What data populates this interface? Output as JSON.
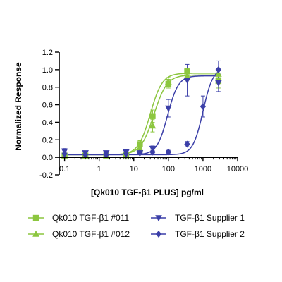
{
  "chart_data": {
    "type": "scatter",
    "title": "",
    "xlabel": "[Qk010 TGF-β1 PLUS] pg/ml",
    "ylabel": "Normalized Response",
    "x_scale": "log",
    "xlim": [
      0.07,
      10000
    ],
    "ylim": [
      -0.2,
      1.2
    ],
    "x_ticks": [
      {
        "value": 0.1,
        "label": "0.1"
      },
      {
        "value": 1,
        "label": "1"
      },
      {
        "value": 10,
        "label": "10"
      },
      {
        "value": 100,
        "label": "100"
      },
      {
        "value": 1000,
        "label": "1000"
      },
      {
        "value": 10000,
        "label": "10000"
      }
    ],
    "y_ticks": [
      {
        "value": -0.2,
        "label": "-0.2"
      },
      {
        "value": 0.0,
        "label": "0.0"
      },
      {
        "value": 0.2,
        "label": "0.2"
      },
      {
        "value": 0.4,
        "label": "0.4"
      },
      {
        "value": 0.6,
        "label": "0.6"
      },
      {
        "value": 0.8,
        "label": "0.8"
      },
      {
        "value": 1.0,
        "label": "1.0"
      },
      {
        "value": 1.2,
        "label": "1.2"
      }
    ],
    "grid": false,
    "legend_position": "bottom",
    "series": [
      {
        "name": "Qk010 TGF-β1 #011",
        "color": "#8cc63f",
        "marker": "square",
        "fit": {
          "bottom": 0.03,
          "top": 0.96,
          "ec50": 30,
          "hill": 2.5
        },
        "points": [
          {
            "x": 0.1,
            "y": 0.02,
            "err": 0.02
          },
          {
            "x": 0.4,
            "y": 0.02,
            "err": 0.02
          },
          {
            "x": 1.6,
            "y": 0.02,
            "err": 0.02
          },
          {
            "x": 6,
            "y": 0.03,
            "err": 0.02
          },
          {
            "x": 15,
            "y": 0.15,
            "err": 0.04
          },
          {
            "x": 35,
            "y": 0.47,
            "err": 0.07
          },
          {
            "x": 100,
            "y": 0.84,
            "err": 0.05
          },
          {
            "x": 350,
            "y": 0.98,
            "err": 0.03
          },
          {
            "x": 2800,
            "y": 0.87,
            "err": 0.08
          }
        ]
      },
      {
        "name": "Qk010 TGF-β1 #012",
        "color": "#8cc63f",
        "marker": "triangle-up",
        "fit": {
          "bottom": 0.03,
          "top": 0.94,
          "ec50": 38,
          "hill": 2.3
        },
        "points": [
          {
            "x": 0.1,
            "y": 0.02,
            "err": 0.02
          },
          {
            "x": 0.4,
            "y": 0.02,
            "err": 0.02
          },
          {
            "x": 1.6,
            "y": 0.02,
            "err": 0.02
          },
          {
            "x": 6,
            "y": 0.02,
            "err": 0.02
          },
          {
            "x": 15,
            "y": 0.1,
            "err": 0.04
          },
          {
            "x": 35,
            "y": 0.36,
            "err": 0.07
          },
          {
            "x": 100,
            "y": 0.86,
            "err": 0.05
          },
          {
            "x": 350,
            "y": 0.93,
            "err": 0.05
          },
          {
            "x": 2800,
            "y": 0.95,
            "err": 0.04
          }
        ]
      },
      {
        "name": "TGF-β1 Supplier 1",
        "color": "#3b3fa8",
        "marker": "triangle-down",
        "fit": {
          "bottom": 0.03,
          "top": 0.93,
          "ec50": 95,
          "hill": 2.8
        },
        "points": [
          {
            "x": 0.1,
            "y": 0.07,
            "err": 0.03
          },
          {
            "x": 0.4,
            "y": 0.05,
            "err": 0.02
          },
          {
            "x": 1.6,
            "y": 0.05,
            "err": 0.02
          },
          {
            "x": 6,
            "y": 0.06,
            "err": 0.02
          },
          {
            "x": 15,
            "y": 0.05,
            "err": 0.02
          },
          {
            "x": 35,
            "y": 0.1,
            "err": 0.03
          },
          {
            "x": 100,
            "y": 0.56,
            "err": 0.1
          },
          {
            "x": 350,
            "y": 0.88,
            "err": 0.18
          },
          {
            "x": 2800,
            "y": 0.85,
            "err": 0.1
          }
        ]
      },
      {
        "name": "TGF-β1 Supplier 2",
        "color": "#3b3fa8",
        "marker": "diamond",
        "fit": {
          "bottom": 0.03,
          "top": 1.02,
          "ec50": 1000,
          "hill": 3.0
        },
        "points": [
          {
            "x": 0.1,
            "y": 0.04,
            "err": 0.02
          },
          {
            "x": 0.4,
            "y": 0.03,
            "err": 0.02
          },
          {
            "x": 1.6,
            "y": 0.03,
            "err": 0.02
          },
          {
            "x": 6,
            "y": 0.04,
            "err": 0.02
          },
          {
            "x": 15,
            "y": 0.05,
            "err": 0.02
          },
          {
            "x": 35,
            "y": 0.06,
            "err": 0.02
          },
          {
            "x": 100,
            "y": 0.06,
            "err": 0.02
          },
          {
            "x": 350,
            "y": 0.15,
            "err": 0.03
          },
          {
            "x": 1000,
            "y": 0.58,
            "err": 0.12
          },
          {
            "x": 2800,
            "y": 1.0,
            "err": 0.1
          }
        ]
      }
    ]
  }
}
